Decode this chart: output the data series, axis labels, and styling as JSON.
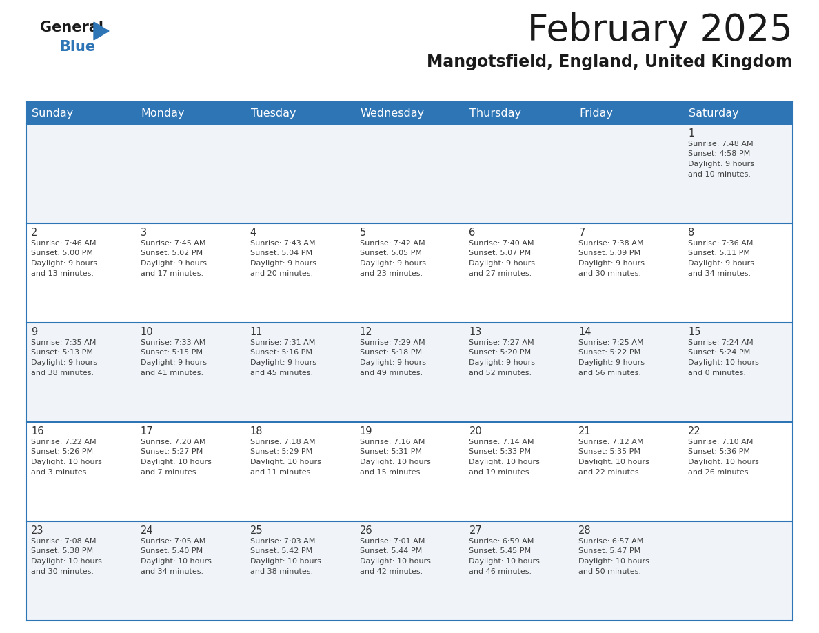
{
  "title": "February 2025",
  "subtitle": "Mangotsfield, England, United Kingdom",
  "header_bg": "#2E75B6",
  "header_text_color": "#FFFFFF",
  "day_names": [
    "Sunday",
    "Monday",
    "Tuesday",
    "Wednesday",
    "Thursday",
    "Friday",
    "Saturday"
  ],
  "cell_bg_light": "#F0F4F8",
  "cell_bg_white": "#FFFFFF",
  "row_line_color": "#2E75B6",
  "text_color": "#404040",
  "number_color": "#333333",
  "title_color": "#1A1A1A",
  "logo_black": "#1A1A1A",
  "logo_blue": "#2E75B6",
  "calendar": [
    [
      null,
      null,
      null,
      null,
      null,
      null,
      {
        "day": 1,
        "sunrise": "7:48 AM",
        "sunset": "4:58 PM",
        "daylight": "9 hours\nand 10 minutes."
      }
    ],
    [
      {
        "day": 2,
        "sunrise": "7:46 AM",
        "sunset": "5:00 PM",
        "daylight": "9 hours\nand 13 minutes."
      },
      {
        "day": 3,
        "sunrise": "7:45 AM",
        "sunset": "5:02 PM",
        "daylight": "9 hours\nand 17 minutes."
      },
      {
        "day": 4,
        "sunrise": "7:43 AM",
        "sunset": "5:04 PM",
        "daylight": "9 hours\nand 20 minutes."
      },
      {
        "day": 5,
        "sunrise": "7:42 AM",
        "sunset": "5:05 PM",
        "daylight": "9 hours\nand 23 minutes."
      },
      {
        "day": 6,
        "sunrise": "7:40 AM",
        "sunset": "5:07 PM",
        "daylight": "9 hours\nand 27 minutes."
      },
      {
        "day": 7,
        "sunrise": "7:38 AM",
        "sunset": "5:09 PM",
        "daylight": "9 hours\nand 30 minutes."
      },
      {
        "day": 8,
        "sunrise": "7:36 AM",
        "sunset": "5:11 PM",
        "daylight": "9 hours\nand 34 minutes."
      }
    ],
    [
      {
        "day": 9,
        "sunrise": "7:35 AM",
        "sunset": "5:13 PM",
        "daylight": "9 hours\nand 38 minutes."
      },
      {
        "day": 10,
        "sunrise": "7:33 AM",
        "sunset": "5:15 PM",
        "daylight": "9 hours\nand 41 minutes."
      },
      {
        "day": 11,
        "sunrise": "7:31 AM",
        "sunset": "5:16 PM",
        "daylight": "9 hours\nand 45 minutes."
      },
      {
        "day": 12,
        "sunrise": "7:29 AM",
        "sunset": "5:18 PM",
        "daylight": "9 hours\nand 49 minutes."
      },
      {
        "day": 13,
        "sunrise": "7:27 AM",
        "sunset": "5:20 PM",
        "daylight": "9 hours\nand 52 minutes."
      },
      {
        "day": 14,
        "sunrise": "7:25 AM",
        "sunset": "5:22 PM",
        "daylight": "9 hours\nand 56 minutes."
      },
      {
        "day": 15,
        "sunrise": "7:24 AM",
        "sunset": "5:24 PM",
        "daylight": "10 hours\nand 0 minutes."
      }
    ],
    [
      {
        "day": 16,
        "sunrise": "7:22 AM",
        "sunset": "5:26 PM",
        "daylight": "10 hours\nand 3 minutes."
      },
      {
        "day": 17,
        "sunrise": "7:20 AM",
        "sunset": "5:27 PM",
        "daylight": "10 hours\nand 7 minutes."
      },
      {
        "day": 18,
        "sunrise": "7:18 AM",
        "sunset": "5:29 PM",
        "daylight": "10 hours\nand 11 minutes."
      },
      {
        "day": 19,
        "sunrise": "7:16 AM",
        "sunset": "5:31 PM",
        "daylight": "10 hours\nand 15 minutes."
      },
      {
        "day": 20,
        "sunrise": "7:14 AM",
        "sunset": "5:33 PM",
        "daylight": "10 hours\nand 19 minutes."
      },
      {
        "day": 21,
        "sunrise": "7:12 AM",
        "sunset": "5:35 PM",
        "daylight": "10 hours\nand 22 minutes."
      },
      {
        "day": 22,
        "sunrise": "7:10 AM",
        "sunset": "5:36 PM",
        "daylight": "10 hours\nand 26 minutes."
      }
    ],
    [
      {
        "day": 23,
        "sunrise": "7:08 AM",
        "sunset": "5:38 PM",
        "daylight": "10 hours\nand 30 minutes."
      },
      {
        "day": 24,
        "sunrise": "7:05 AM",
        "sunset": "5:40 PM",
        "daylight": "10 hours\nand 34 minutes."
      },
      {
        "day": 25,
        "sunrise": "7:03 AM",
        "sunset": "5:42 PM",
        "daylight": "10 hours\nand 38 minutes."
      },
      {
        "day": 26,
        "sunrise": "7:01 AM",
        "sunset": "5:44 PM",
        "daylight": "10 hours\nand 42 minutes."
      },
      {
        "day": 27,
        "sunrise": "6:59 AM",
        "sunset": "5:45 PM",
        "daylight": "10 hours\nand 46 minutes."
      },
      {
        "day": 28,
        "sunrise": "6:57 AM",
        "sunset": "5:47 PM",
        "daylight": "10 hours\nand 50 minutes."
      },
      null
    ]
  ],
  "figsize": [
    11.88,
    9.18
  ],
  "dpi": 100
}
